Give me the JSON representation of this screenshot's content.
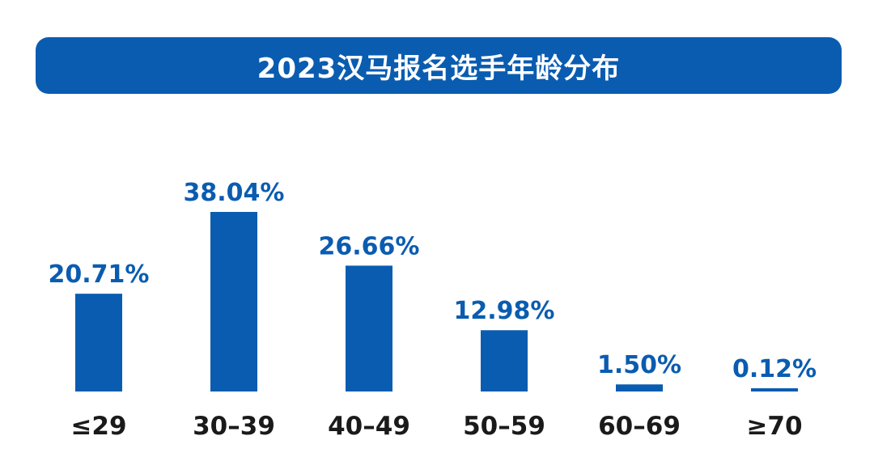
{
  "title": "2023汉马报名选手年龄分布",
  "colors": {
    "banner": "#0a5cb0",
    "bar": "#0a5cb0",
    "value_text": "#0a5cb0",
    "category_text": "#1a1a1a",
    "title_text": "#ffffff"
  },
  "chart_data": {
    "type": "bar",
    "title": "2023汉马报名选手年龄分布",
    "categories": [
      "≤29",
      "30–39",
      "40–49",
      "50–59",
      "60–69",
      "≥70"
    ],
    "values": [
      20.71,
      38.04,
      26.66,
      12.98,
      1.5,
      0.12
    ],
    "data_labels": [
      "20.71%",
      "38.04%",
      "26.66%",
      "12.98%",
      "1.50%",
      "0.12%"
    ],
    "unit": "%",
    "xlabel": "",
    "ylabel": "",
    "ylim": [
      0,
      38.04
    ],
    "grid": false,
    "legend": "none"
  }
}
